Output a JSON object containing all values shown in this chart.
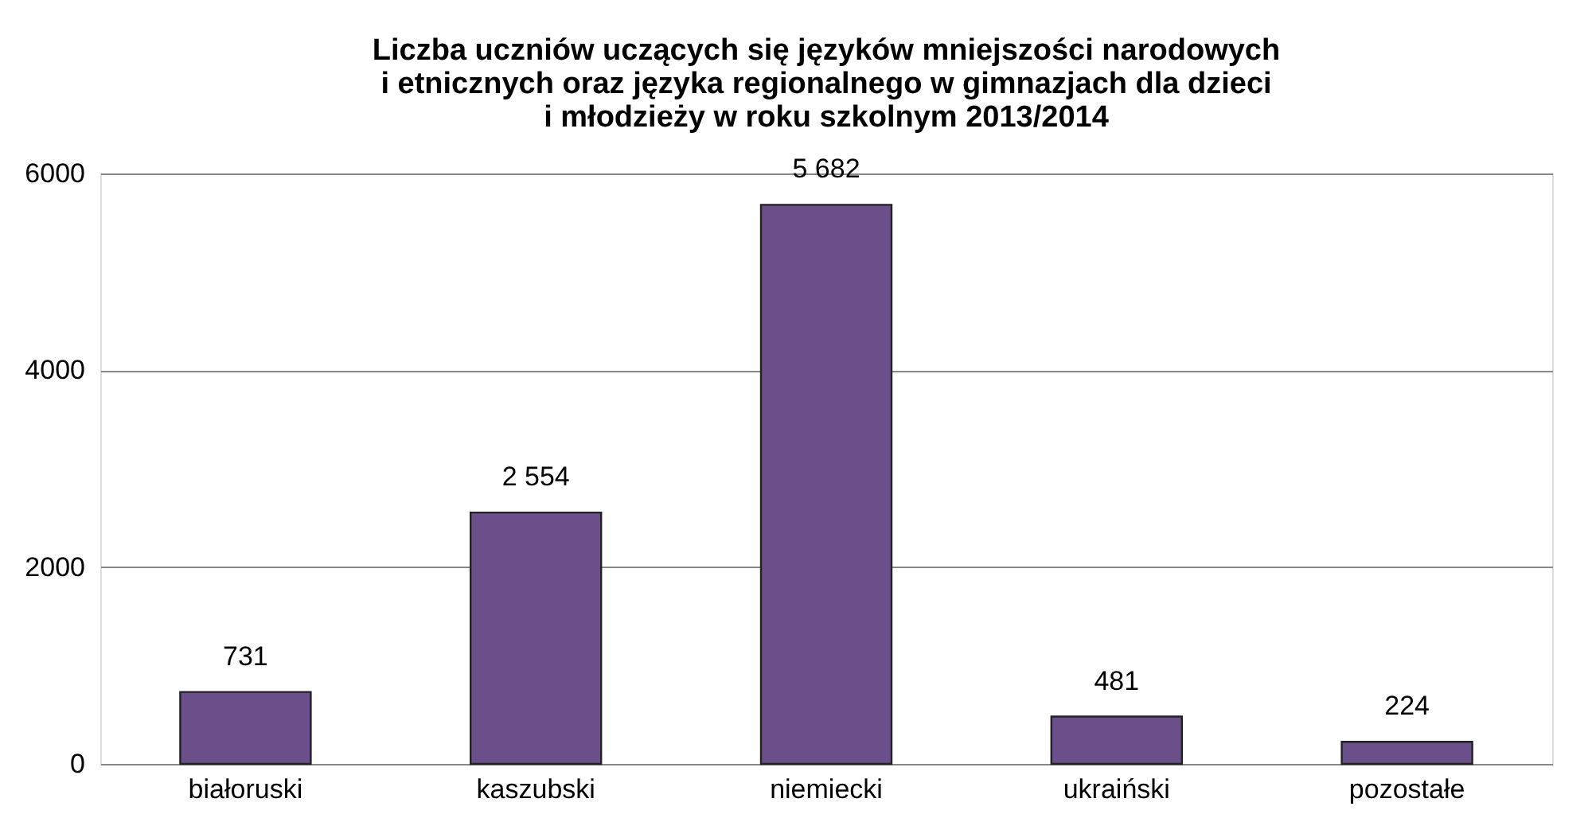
{
  "chart_data": {
    "type": "bar",
    "title": [
      "Liczba uczniów uczących się języków mniejszości narodowych",
      "i etnicznych oraz języka regionalnego w gimnazjach dla dzieci",
      "i młodzieży w roku szkolnym 2013/2014"
    ],
    "categories": [
      "białoruski",
      "kaszubski",
      "niemiecki",
      "ukraiński",
      "pozostałe"
    ],
    "values": [
      731,
      2554,
      5682,
      481,
      224
    ],
    "value_labels": [
      "731",
      "2 554",
      "5 682",
      "481",
      "224"
    ],
    "color": "#6a4f8a",
    "ylim": [
      0,
      6000
    ],
    "yticks": [
      0,
      2000,
      4000,
      6000
    ],
    "grid": "y"
  }
}
